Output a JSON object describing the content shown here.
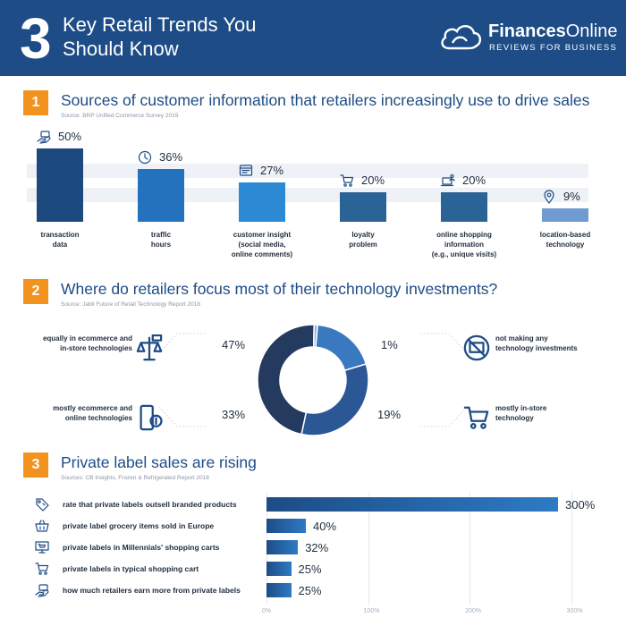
{
  "header": {
    "number": "3",
    "title": "Key Retail Trends You Should Know",
    "brand_name_bold": "Finances",
    "brand_name_rest": "Online",
    "brand_tagline": "REVIEWS FOR BUSINESS"
  },
  "sections": [
    {
      "number": "1",
      "title": "Sources of customer information that retailers increasingly use to drive sales",
      "source": "Source: BRP Unified Commerce Survey 2019"
    },
    {
      "number": "2",
      "title": "Where do retailers focus most of their technology investments?",
      "source": "Source: Jabil Future of Retail Technology Report 2018"
    },
    {
      "number": "3",
      "title": "Private label sales are rising",
      "source": "Sources: CB Insights, Frozen & Refrigerated Report 2018"
    }
  ],
  "colors": {
    "header_bg": "#1d4c86",
    "accent_orange": "#f3931f",
    "bar_dark": "#1d4c86",
    "bar_light": "#2d7bc4"
  },
  "chart_data": [
    {
      "type": "bar",
      "categories": [
        [
          "transaction",
          "data"
        ],
        [
          "traffic",
          "hours"
        ],
        [
          "customer insight",
          "(social media,",
          "online comments)"
        ],
        [
          "loyalty",
          "problem"
        ],
        [
          "online shopping",
          "information",
          "(e.g., unique visits)"
        ],
        [
          "location-based",
          "technology"
        ]
      ],
      "values": [
        50,
        36,
        27,
        20,
        20,
        9
      ],
      "value_labels": [
        "50%",
        "36%",
        "27%",
        "20%",
        "20%",
        "9%"
      ],
      "icons": [
        "money-hand-icon",
        "clock-icon",
        "browser-window-icon",
        "shopping-cart-icon",
        "laptop-user-icon",
        "location-pin-icon"
      ],
      "bar_colors": [
        "#1c4a7e",
        "#2472be",
        "#2b8ad3",
        "#2a6496",
        "#2a6496",
        "#6f9bd1"
      ],
      "ylim": [
        0,
        50
      ]
    },
    {
      "type": "pie",
      "donut": true,
      "slices": [
        {
          "label": [
            "equally in ecommerce and",
            "in-store technologies"
          ],
          "value": 47,
          "value_label": "47%",
          "color": "#243a5e",
          "icon": "store-scale-icon"
        },
        {
          "label": [
            "not making any",
            "technology investments"
          ],
          "value": 1,
          "value_label": "1%",
          "color": "#8bb5dc",
          "icon": "no-computer-icon"
        },
        {
          "label": [
            "mostly in-store",
            "technology"
          ],
          "value": 19,
          "value_label": "19%",
          "color": "#3a78bf",
          "icon": "shopping-cart-icon"
        },
        {
          "label": [
            "mostly ecommerce and",
            "online technologies"
          ],
          "value": 33,
          "value_label": "33%",
          "color": "#2c5795",
          "icon": "phone-dollar-icon"
        }
      ]
    },
    {
      "type": "bar",
      "orientation": "horizontal",
      "categories": [
        "rate that private labels outsell branded products",
        "private label grocery items sold in Europe",
        "private labels in Millennials' shopping carts",
        "private labels in typical shopping cart",
        "how much retailers earn more from private labels"
      ],
      "values": [
        300,
        40,
        32,
        25,
        25
      ],
      "value_labels": [
        "300%",
        "40%",
        "32%",
        "25%",
        "25%"
      ],
      "icons": [
        "price-tag-icon",
        "grocery-basket-icon",
        "monitor-cart-icon",
        "shopping-cart-icon",
        "money-hand-icon"
      ],
      "xticks": [
        "0%",
        "100%",
        "200%",
        "300%"
      ],
      "xlim": [
        0,
        300
      ]
    }
  ]
}
